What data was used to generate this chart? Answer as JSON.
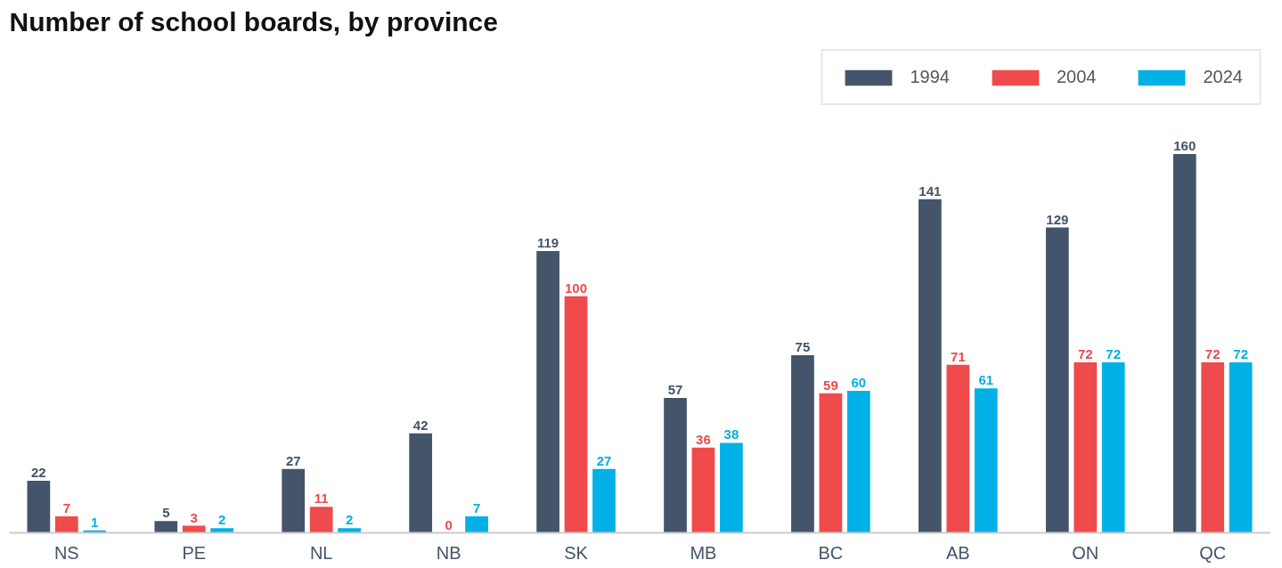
{
  "chart_data": {
    "type": "bar",
    "title": "Number of school boards, by province",
    "categories": [
      "NS",
      "PE",
      "NL",
      "NB",
      "SK",
      "MB",
      "BC",
      "AB",
      "ON",
      "QC"
    ],
    "series": [
      {
        "name": "1994",
        "color": "#44546a",
        "values": [
          22,
          5,
          27,
          42,
          119,
          57,
          75,
          141,
          129,
          160
        ]
      },
      {
        "name": "2004",
        "color": "#ef4a4c",
        "values": [
          7,
          3,
          11,
          0,
          100,
          36,
          59,
          71,
          72,
          72
        ]
      },
      {
        "name": "2024",
        "color": "#00b0e6",
        "values": [
          1,
          2,
          2,
          7,
          27,
          38,
          60,
          61,
          72,
          72
        ]
      }
    ],
    "data_labels": true,
    "legend": "top right",
    "grid": false
  }
}
